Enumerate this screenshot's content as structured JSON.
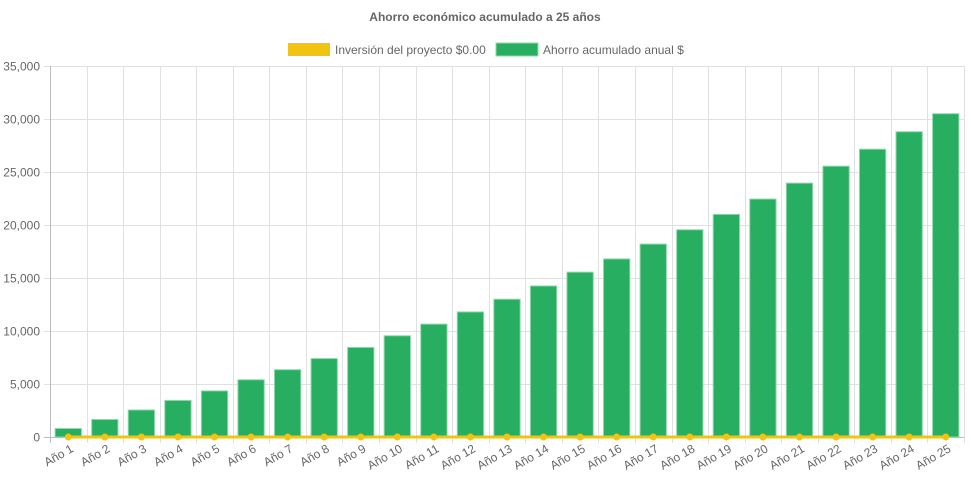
{
  "chart_data": {
    "type": "bar",
    "title": "Ahorro económico acumulado a 25 años",
    "categories": [
      "Año 1",
      "Año 2",
      "Año 3",
      "Año 4",
      "Año 5",
      "Año 6",
      "Año 7",
      "Año 8",
      "Año 9",
      "Año 10",
      "Año 11",
      "Año 12",
      "Año 13",
      "Año 14",
      "Año 15",
      "Año 16",
      "Año 17",
      "Año 18",
      "Año 19",
      "Año 20",
      "Año 21",
      "Año 22",
      "Año 23",
      "Año 24",
      "Año 25"
    ],
    "series": [
      {
        "name": "Inversión del proyecto $0.00",
        "type": "line",
        "color": "#f1c40f",
        "values": [
          0,
          0,
          0,
          0,
          0,
          0,
          0,
          0,
          0,
          0,
          0,
          0,
          0,
          0,
          0,
          0,
          0,
          0,
          0,
          0,
          0,
          0,
          0,
          0,
          0
        ]
      },
      {
        "name": "Ahorro acumulado anual $",
        "type": "bar",
        "color": "#27ae60",
        "values": [
          800,
          1650,
          2550,
          3450,
          4350,
          5400,
          6350,
          7400,
          8450,
          9550,
          10650,
          11800,
          13000,
          14250,
          15550,
          16800,
          18200,
          19550,
          21000,
          22450,
          23950,
          25550,
          27150,
          28800,
          30500
        ]
      }
    ],
    "ylim": [
      0,
      35000
    ],
    "yticks": [
      "0",
      "5,000",
      "10,000",
      "15,000",
      "20,000",
      "25,000",
      "30,000",
      "35,000"
    ],
    "ytick_values": [
      0,
      5000,
      10000,
      15000,
      20000,
      25000,
      30000,
      35000
    ],
    "grid": true,
    "legend": "top"
  }
}
